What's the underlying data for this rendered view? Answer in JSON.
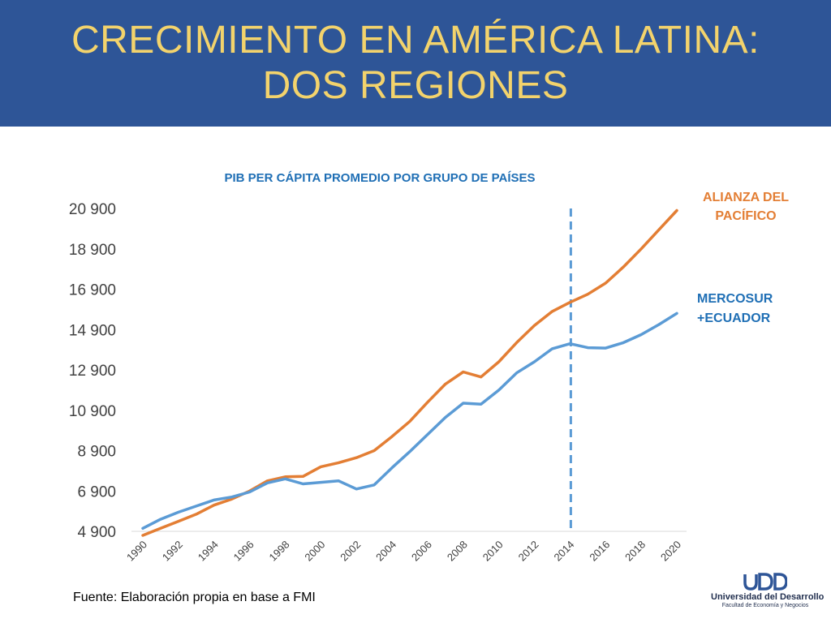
{
  "slide": {
    "title_line1": "CRECIMIENTO EN AMÉRICA LATINA:",
    "title_line2": "DOS REGIONES",
    "source": "Fuente: Elaboración propia en base a FMI"
  },
  "logo": {
    "name": "Universidad del Desarrollo",
    "faculty": "Facultad de Economía y Negocios"
  },
  "colors": {
    "title_band": "#2e5597",
    "title_text": "#f3d36c",
    "alianza": "#e37e34",
    "mercosur": "#5b9bd5",
    "chart_title": "#1f6fb5",
    "marker_line": "#5b9bd5"
  },
  "chart_data": {
    "type": "line",
    "title": "PIB PER CÁPITA PROMEDIO POR GRUPO DE PAÍSES",
    "x": [
      1990,
      1991,
      1992,
      1993,
      1994,
      1995,
      1996,
      1997,
      1998,
      1999,
      2000,
      2001,
      2002,
      2003,
      2004,
      2005,
      2006,
      2007,
      2008,
      2009,
      2010,
      2011,
      2012,
      2013,
      2014,
      2015,
      2016,
      2017,
      2018,
      2019,
      2020
    ],
    "x_tick_labels": [
      "1990",
      "1992",
      "1994",
      "1996",
      "1998",
      "2000",
      "2002",
      "2004",
      "2006",
      "2008",
      "2010",
      "2012",
      "2014",
      "2016",
      "2018",
      "2020"
    ],
    "y_ticks": [
      4900,
      6900,
      8900,
      10900,
      12900,
      14900,
      16900,
      18900,
      20900
    ],
    "y_tick_labels": [
      "4 900",
      "6 900",
      "8 900",
      "10 900",
      "12 900",
      "14 900",
      "16 900",
      "18 900",
      "20 900"
    ],
    "ylim": [
      4900,
      20900
    ],
    "vertical_marker_x": 2014,
    "grid": false,
    "series": [
      {
        "name": "ALIANZA DEL PACÍFICO",
        "label_line1": "ALIANZA DEL",
        "label_line2": "PACÍFICO",
        "color": "#e37e34",
        "values": [
          4700,
          5050,
          5400,
          5750,
          6200,
          6500,
          6900,
          7400,
          7600,
          7620,
          8100,
          8300,
          8550,
          8900,
          9600,
          10350,
          11300,
          12200,
          12800,
          12550,
          13300,
          14250,
          15100,
          15800,
          16250,
          16650,
          17200,
          18000,
          18900,
          19850,
          20800
        ]
      },
      {
        "name": "MERCOSUR +ECUADOR",
        "label_line1": "MERCOSUR",
        "label_line2": "+ECUADOR",
        "color": "#5b9bd5",
        "values": [
          5050,
          5500,
          5850,
          6150,
          6450,
          6600,
          6850,
          7300,
          7500,
          7250,
          7330,
          7400,
          7000,
          7200,
          8050,
          8850,
          9700,
          10550,
          11250,
          11200,
          11900,
          12750,
          13300,
          13950,
          14200,
          14000,
          13980,
          14250,
          14650,
          15150,
          15700
        ]
      }
    ]
  }
}
